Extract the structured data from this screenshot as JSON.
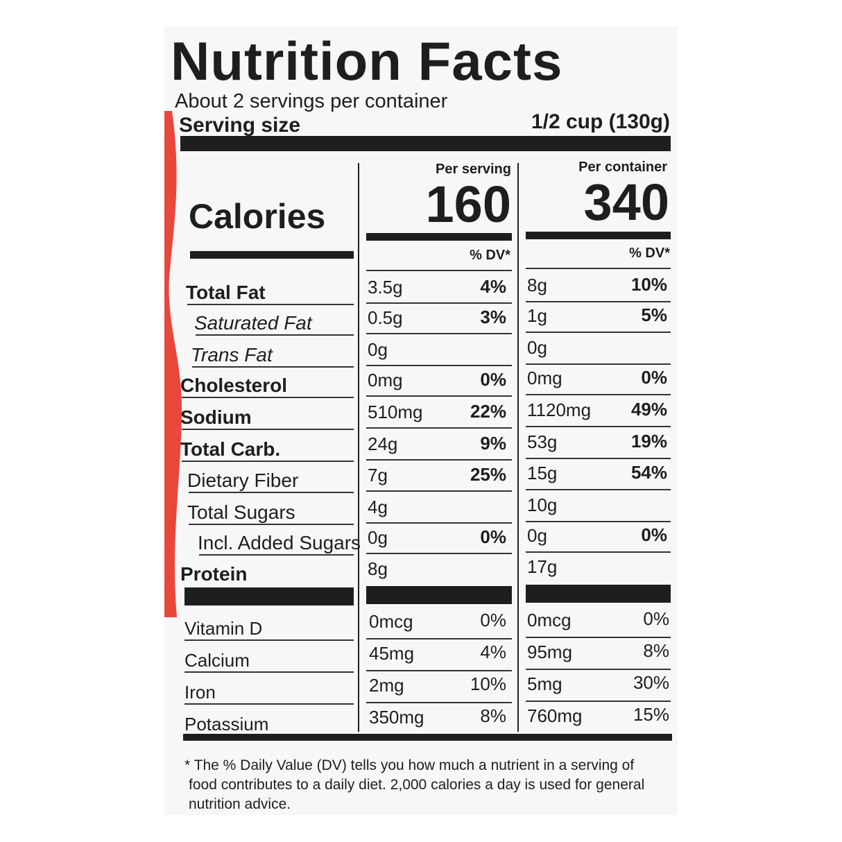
{
  "title": "Nutrition Facts",
  "servings": "About 2 servings per container",
  "serving_size": {
    "label": "Serving size",
    "value": "1/2 cup (130g)"
  },
  "calories": {
    "label": "Calories",
    "per_serving_header": "Per serving",
    "per_container_header": "Per container",
    "per_serving": "160",
    "per_container": "340"
  },
  "dv_header": "% DV*",
  "nutrients": [
    {
      "name": "Total Fat",
      "serving_amount": "3.5g",
      "serving_dv": "4%",
      "container_amount": "8g",
      "container_dv": "10%"
    },
    {
      "name": "Saturated Fat",
      "serving_amount": "0.5g",
      "serving_dv": "3%",
      "container_amount": "1g",
      "container_dv": "5%"
    },
    {
      "name": "Trans Fat",
      "serving_amount": "0g",
      "container_amount": "0g"
    },
    {
      "name": "Cholesterol",
      "serving_amount": "0mg",
      "serving_dv": "0%",
      "container_amount": "0mg",
      "container_dv": "0%"
    },
    {
      "name": "Sodium",
      "serving_amount": "510mg",
      "serving_dv": "22%",
      "container_amount": "1120mg",
      "container_dv": "49%"
    },
    {
      "name": "Total Carb.",
      "serving_amount": "24g",
      "serving_dv": "9%",
      "container_amount": "53g",
      "container_dv": "19%"
    },
    {
      "name": "Dietary Fiber",
      "serving_amount": "7g",
      "serving_dv": "25%",
      "container_amount": "15g",
      "container_dv": "54%"
    },
    {
      "name": "Total Sugars",
      "serving_amount": "4g",
      "container_amount": "10g"
    },
    {
      "name": "Incl. Added Sugars",
      "serving_amount": "0g",
      "serving_dv": "0%",
      "container_amount": "0g",
      "container_dv": "0%"
    },
    {
      "name": "Protein",
      "serving_amount": "8g",
      "container_amount": "17g"
    }
  ],
  "vitamins": [
    {
      "name": "Vitamin D",
      "serving_amount": "0mcg",
      "serving_dv": "0%",
      "container_amount": "0mcg",
      "container_dv": "0%"
    },
    {
      "name": "Calcium",
      "serving_amount": "45mg",
      "serving_dv": "4%",
      "container_amount": "95mg",
      "container_dv": "8%"
    },
    {
      "name": "Iron",
      "serving_amount": "2mg",
      "serving_dv": "10%",
      "container_amount": "5mg",
      "container_dv": "30%"
    },
    {
      "name": "Potassium",
      "serving_amount": "350mg",
      "serving_dv": "8%",
      "container_amount": "760mg",
      "container_dv": "15%"
    }
  ],
  "footnote": [
    "* The % Daily Value (DV) tells you how much a nutrient in a serving of",
    "food contributes to a daily diet. 2,000 calories a day is used for general",
    "nutrition advice."
  ]
}
